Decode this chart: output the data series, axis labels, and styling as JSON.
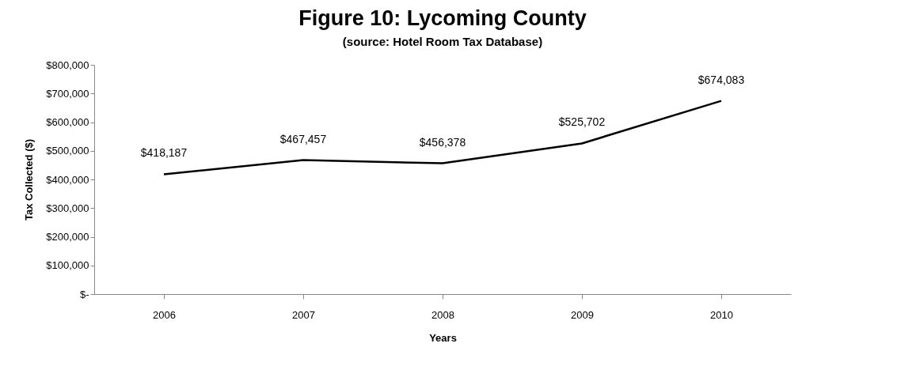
{
  "chart_data": {
    "type": "line",
    "title": "Figure 10: Lycoming County",
    "subtitle": "(source:  Hotel Room Tax Database)",
    "xlabel": "Years",
    "ylabel": "Tax Collected ($)",
    "categories": [
      "2006",
      "2007",
      "2008",
      "2009",
      "2010"
    ],
    "series": [
      {
        "color": "#000000",
        "values": [
          418187,
          467457,
          456378,
          525702,
          674083
        ]
      }
    ],
    "value_labels": [
      "$418,187",
      "$467,457",
      "$456,378",
      "$525,702",
      "$674,083"
    ],
    "ylim": [
      0,
      800000
    ],
    "yticks": [
      {
        "value": 0,
        "label": "$-"
      },
      {
        "value": 100000,
        "label": "$100,000"
      },
      {
        "value": 200000,
        "label": "$200,000"
      },
      {
        "value": 300000,
        "label": "$300,000"
      },
      {
        "value": 400000,
        "label": "$400,000"
      },
      {
        "value": 500000,
        "label": "$500,000"
      },
      {
        "value": 600000,
        "label": "$600,000"
      },
      {
        "value": 700000,
        "label": "$700,000"
      },
      {
        "value": 800000,
        "label": "$800,000"
      }
    ],
    "grid": false,
    "marker": "none",
    "line_style": "solid"
  }
}
